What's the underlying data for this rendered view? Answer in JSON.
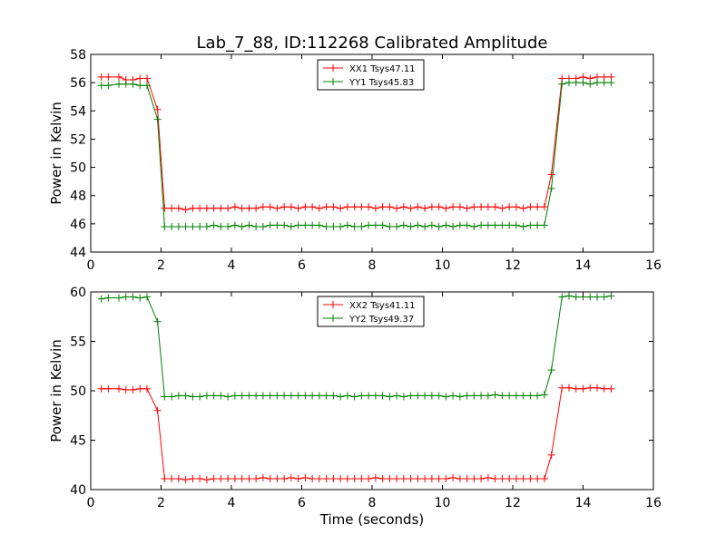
{
  "colors": {
    "xx": "#ff0000",
    "yy": "#008000",
    "axes": "#000000",
    "background": "#ffffff"
  },
  "chart_data": [
    {
      "type": "line",
      "title": "Lab_7_88, ID:112268 Calibrated Amplitude",
      "xlabel": "",
      "ylabel": "Power in Kelvin",
      "xlim": [
        0,
        16
      ],
      "ylim": [
        44,
        58
      ],
      "xticks": [
        0,
        2,
        4,
        6,
        8,
        10,
        12,
        14,
        16
      ],
      "yticks": [
        44,
        46,
        48,
        50,
        52,
        54,
        56,
        58
      ],
      "grid": false,
      "legend_position": "top-center",
      "x": [
        0.3,
        0.5,
        0.8,
        1.0,
        1.2,
        1.4,
        1.6,
        1.9,
        2.1,
        2.3,
        2.5,
        2.7,
        2.9,
        3.1,
        3.3,
        3.5,
        3.7,
        3.9,
        4.1,
        4.3,
        4.5,
        4.7,
        4.9,
        5.1,
        5.3,
        5.5,
        5.7,
        5.9,
        6.1,
        6.3,
        6.5,
        6.7,
        6.9,
        7.1,
        7.3,
        7.5,
        7.7,
        7.9,
        8.1,
        8.3,
        8.5,
        8.7,
        8.9,
        9.1,
        9.3,
        9.5,
        9.7,
        9.9,
        10.1,
        10.3,
        10.5,
        10.7,
        10.9,
        11.1,
        11.3,
        11.5,
        11.7,
        11.9,
        12.1,
        12.3,
        12.5,
        12.7,
        12.9,
        13.1,
        13.4,
        13.6,
        13.8,
        14.0,
        14.2,
        14.4,
        14.6,
        14.8
      ],
      "series": [
        {
          "name": "XX1 Tsys47.11",
          "color": "#ff0000",
          "marker": "+",
          "values": [
            56.4,
            56.4,
            56.4,
            56.2,
            56.2,
            56.3,
            56.3,
            54.1,
            47.1,
            47.1,
            47.1,
            47.0,
            47.1,
            47.1,
            47.1,
            47.1,
            47.1,
            47.1,
            47.2,
            47.1,
            47.1,
            47.1,
            47.2,
            47.2,
            47.1,
            47.2,
            47.2,
            47.1,
            47.2,
            47.2,
            47.1,
            47.2,
            47.2,
            47.1,
            47.2,
            47.2,
            47.2,
            47.2,
            47.1,
            47.2,
            47.2,
            47.1,
            47.2,
            47.1,
            47.2,
            47.1,
            47.2,
            47.2,
            47.1,
            47.2,
            47.2,
            47.1,
            47.2,
            47.2,
            47.2,
            47.2,
            47.1,
            47.2,
            47.2,
            47.1,
            47.2,
            47.2,
            47.2,
            49.5,
            56.3,
            56.3,
            56.3,
            56.4,
            56.3,
            56.4,
            56.4,
            56.4
          ]
        },
        {
          "name": "YY1 Tsys45.83",
          "color": "#008000",
          "marker": "+",
          "values": [
            55.8,
            55.8,
            55.9,
            55.9,
            55.9,
            55.8,
            55.8,
            53.4,
            45.8,
            45.8,
            45.8,
            45.8,
            45.8,
            45.8,
            45.8,
            45.9,
            45.8,
            45.8,
            45.9,
            45.8,
            45.9,
            45.8,
            45.8,
            45.9,
            45.9,
            45.9,
            45.8,
            45.9,
            45.9,
            45.9,
            45.9,
            45.8,
            45.8,
            45.8,
            45.9,
            45.8,
            45.8,
            45.9,
            45.9,
            45.9,
            45.8,
            45.8,
            45.9,
            45.8,
            45.9,
            45.8,
            45.9,
            45.8,
            45.9,
            45.8,
            45.9,
            45.9,
            45.8,
            45.9,
            45.9,
            45.9,
            45.9,
            45.9,
            45.9,
            45.8,
            45.9,
            45.9,
            45.9,
            48.5,
            55.9,
            56.0,
            56.0,
            56.0,
            55.9,
            56.0,
            56.0,
            56.0
          ]
        }
      ]
    },
    {
      "type": "line",
      "title": "",
      "xlabel": "Time (seconds)",
      "ylabel": "Power in Kelvin",
      "xlim": [
        0,
        16
      ],
      "ylim": [
        40,
        60
      ],
      "xticks": [
        0,
        2,
        4,
        6,
        8,
        10,
        12,
        14,
        16
      ],
      "yticks": [
        40,
        45,
        50,
        55,
        60
      ],
      "grid": false,
      "legend_position": "top-center",
      "x": [
        0.3,
        0.5,
        0.8,
        1.0,
        1.2,
        1.4,
        1.6,
        1.9,
        2.1,
        2.3,
        2.5,
        2.7,
        2.9,
        3.1,
        3.3,
        3.5,
        3.7,
        3.9,
        4.1,
        4.3,
        4.5,
        4.7,
        4.9,
        5.1,
        5.3,
        5.5,
        5.7,
        5.9,
        6.1,
        6.3,
        6.5,
        6.7,
        6.9,
        7.1,
        7.3,
        7.5,
        7.7,
        7.9,
        8.1,
        8.3,
        8.5,
        8.7,
        8.9,
        9.1,
        9.3,
        9.5,
        9.7,
        9.9,
        10.1,
        10.3,
        10.5,
        10.7,
        10.9,
        11.1,
        11.3,
        11.5,
        11.7,
        11.9,
        12.1,
        12.3,
        12.5,
        12.7,
        12.9,
        13.1,
        13.4,
        13.6,
        13.8,
        14.0,
        14.2,
        14.4,
        14.6,
        14.8
      ],
      "series": [
        {
          "name": "XX2 Tsys41.11",
          "color": "#ff0000",
          "marker": "+",
          "values": [
            50.2,
            50.2,
            50.2,
            50.1,
            50.1,
            50.2,
            50.2,
            48.0,
            41.1,
            41.1,
            41.1,
            41.0,
            41.1,
            41.1,
            41.0,
            41.1,
            41.1,
            41.1,
            41.1,
            41.1,
            41.1,
            41.1,
            41.2,
            41.1,
            41.1,
            41.1,
            41.2,
            41.1,
            41.2,
            41.1,
            41.1,
            41.1,
            41.1,
            41.1,
            41.1,
            41.1,
            41.1,
            41.1,
            41.2,
            41.1,
            41.1,
            41.1,
            41.1,
            41.1,
            41.1,
            41.1,
            41.1,
            41.1,
            41.1,
            41.2,
            41.1,
            41.1,
            41.1,
            41.1,
            41.2,
            41.1,
            41.1,
            41.1,
            41.1,
            41.1,
            41.1,
            41.1,
            41.1,
            43.5,
            50.3,
            50.3,
            50.2,
            50.2,
            50.3,
            50.3,
            50.2,
            50.2
          ]
        },
        {
          "name": "YY2 Tsys49.37",
          "color": "#008000",
          "marker": "+",
          "values": [
            59.3,
            59.4,
            59.4,
            59.5,
            59.5,
            59.4,
            59.5,
            57.0,
            49.4,
            49.4,
            49.5,
            49.5,
            49.4,
            49.4,
            49.5,
            49.5,
            49.5,
            49.4,
            49.5,
            49.5,
            49.5,
            49.5,
            49.5,
            49.5,
            49.5,
            49.5,
            49.5,
            49.5,
            49.5,
            49.5,
            49.5,
            49.5,
            49.5,
            49.4,
            49.5,
            49.4,
            49.5,
            49.5,
            49.5,
            49.5,
            49.4,
            49.5,
            49.4,
            49.5,
            49.5,
            49.5,
            49.5,
            49.5,
            49.4,
            49.5,
            49.4,
            49.5,
            49.5,
            49.5,
            49.5,
            49.6,
            49.5,
            49.5,
            49.5,
            49.5,
            49.5,
            49.5,
            49.6,
            52.1,
            59.5,
            59.6,
            59.5,
            59.5,
            59.5,
            59.5,
            59.5,
            59.6
          ]
        }
      ]
    }
  ]
}
